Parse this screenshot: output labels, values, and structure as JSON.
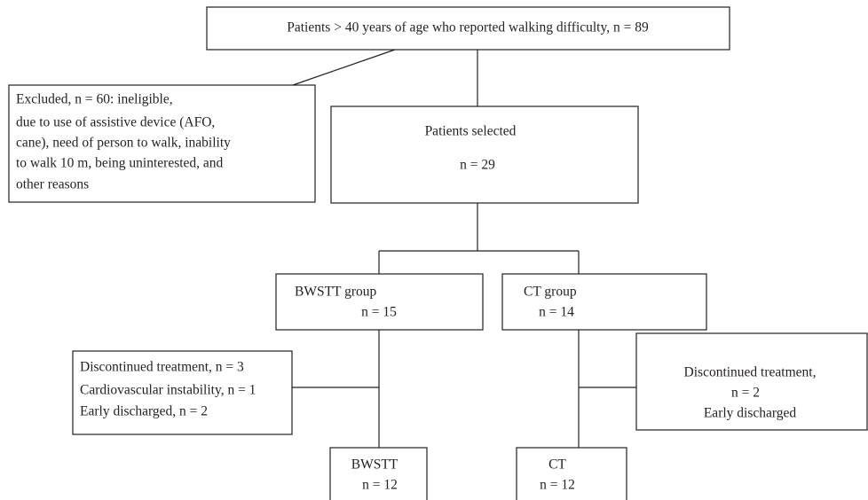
{
  "nodes": [
    {
      "lines": [
        "Patients > 40 years of age who reported walking difficulty, n = 89"
      ]
    },
    {
      "lines": [
        "Excluded, n = 60: ineligible,",
        "due to use of assistive device (AFO,",
        "cane), need of person to walk, inability",
        "to walk 10 m, being uninterested, and",
        "other reasons"
      ]
    },
    {
      "lines": [
        "Patients selected",
        "n = 29"
      ]
    },
    {
      "lines": [
        "BWSTT group",
        "n = 15"
      ]
    },
    {
      "lines": [
        "CT group",
        "n = 14"
      ]
    },
    {
      "lines": [
        "Discontinued treatment, n = 3",
        "Cardiovascular instability, n = 1",
        "Early discharged, n = 2"
      ]
    },
    {
      "lines": [
        "Discontinued treatment,",
        "n = 2",
        "Early discharged"
      ]
    },
    {
      "lines": [
        "BWSTT",
        "n = 12"
      ]
    },
    {
      "lines": [
        "CT",
        "n = 12"
      ]
    }
  ]
}
